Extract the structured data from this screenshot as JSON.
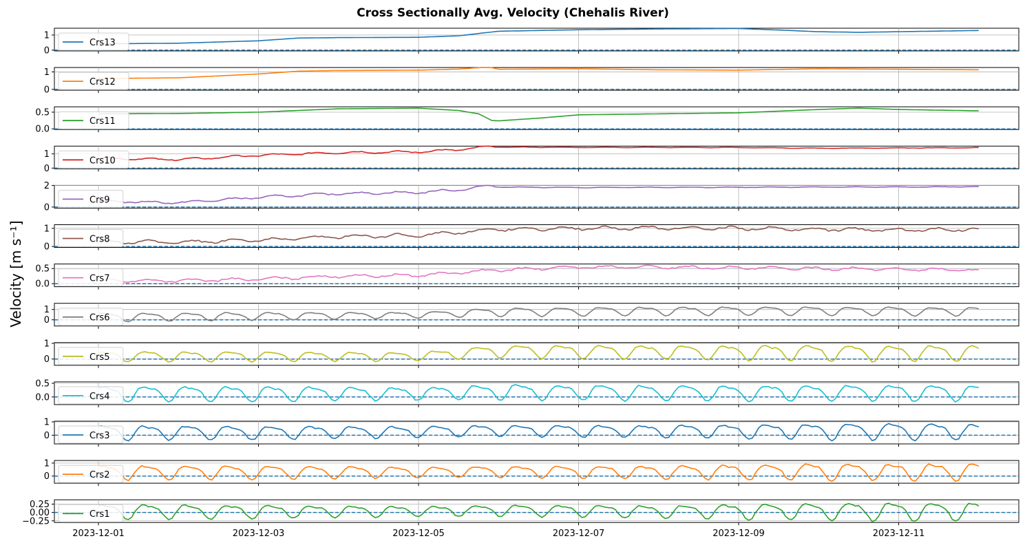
{
  "chart_data": {
    "type": "line",
    "title": "Cross Sectionally Avg. Velocity (Chehalis River)",
    "ylabel": "Velocity [m s⁻¹]",
    "x_range": [
      "2023-12-01",
      "2023-12-12"
    ],
    "x_ticks": [
      "2023-12-01",
      "2023-12-03",
      "2023-12-05",
      "2023-12-07",
      "2023-12-09",
      "2023-12-11"
    ],
    "grid": true,
    "legend_placement": "left",
    "zero_line": {
      "value": 0,
      "style": "dashed",
      "color": "#1f77b4"
    },
    "panels": [
      {
        "name": "Crs13",
        "color": "#1f77b4",
        "ylim": [
          -0.05,
          1.45
        ],
        "yticks": [
          0,
          1
        ],
        "ytick_labels": [
          "0",
          "1"
        ],
        "mode": "trend",
        "x": [
          "2023-12-01",
          "2023-12-02",
          "2023-12-03",
          "2023-12-03T12:00",
          "2023-12-04",
          "2023-12-05",
          "2023-12-05T12:00",
          "2023-12-06",
          "2023-12-07",
          "2023-12-08",
          "2023-12-09",
          "2023-12-09T12:00",
          "2023-12-10",
          "2023-12-10T12:00",
          "2023-12-11",
          "2023-12-12"
        ],
        "y": [
          0.42,
          0.46,
          0.62,
          0.8,
          0.83,
          0.85,
          0.95,
          1.25,
          1.35,
          1.4,
          1.43,
          1.33,
          1.22,
          1.18,
          1.22,
          1.3
        ]
      },
      {
        "name": "Crs12",
        "color": "#ff7f0e",
        "ylim": [
          -0.05,
          1.25
        ],
        "yticks": [
          0,
          1
        ],
        "ytick_labels": [
          "0",
          "1"
        ],
        "mode": "trend",
        "x": [
          "2023-12-01",
          "2023-12-02",
          "2023-12-03",
          "2023-12-03T12:00",
          "2023-12-04",
          "2023-12-05",
          "2023-12-05T12:00",
          "2023-12-05T21:00",
          "2023-12-06",
          "2023-12-07",
          "2023-12-08",
          "2023-12-09",
          "2023-12-10",
          "2023-12-11",
          "2023-12-12"
        ],
        "y": [
          0.62,
          0.66,
          0.88,
          1.04,
          1.08,
          1.1,
          1.16,
          1.28,
          1.15,
          1.18,
          1.12,
          1.1,
          1.18,
          1.15,
          1.12
        ]
      },
      {
        "name": "Crs11",
        "color": "#2ca02c",
        "ylim": [
          -0.02,
          0.66
        ],
        "yticks": [
          0,
          0.5
        ],
        "ytick_labels": [
          "0.0",
          "0.5"
        ],
        "mode": "trend",
        "x": [
          "2023-12-01",
          "2023-12-02",
          "2023-12-03",
          "2023-12-04",
          "2023-12-05",
          "2023-12-05T12:00",
          "2023-12-05T18:00",
          "2023-12-05T22:00",
          "2023-12-06",
          "2023-12-06T12:00",
          "2023-12-07",
          "2023-12-08",
          "2023-12-09",
          "2023-12-10",
          "2023-12-10T12:00",
          "2023-12-11",
          "2023-12-12"
        ],
        "y": [
          0.45,
          0.46,
          0.5,
          0.6,
          0.62,
          0.55,
          0.45,
          0.25,
          0.24,
          0.32,
          0.42,
          0.45,
          0.48,
          0.58,
          0.62,
          0.58,
          0.54
        ]
      },
      {
        "name": "Crs10",
        "color": "#d62728",
        "ylim": [
          -0.05,
          1.55
        ],
        "yticks": [
          0,
          1
        ],
        "ytick_labels": [
          "0",
          "1"
        ],
        "mode": "wiggle",
        "amp": 0.1,
        "amp_end_frac": 0.45,
        "x": [
          "2023-12-01",
          "2023-12-02",
          "2023-12-03",
          "2023-12-04",
          "2023-12-05",
          "2023-12-05T12:00",
          "2023-12-05T21:00",
          "2023-12-06",
          "2023-12-07",
          "2023-12-08",
          "2023-12-09",
          "2023-12-10",
          "2023-12-11",
          "2023-12-12"
        ],
        "y": [
          0.7,
          0.6,
          0.9,
          1.1,
          1.15,
          1.3,
          1.5,
          1.48,
          1.46,
          1.46,
          1.45,
          1.4,
          1.42,
          1.44
        ]
      },
      {
        "name": "Crs9",
        "color": "#9467bd",
        "ylim": [
          -0.1,
          2.0
        ],
        "yticks": [
          0,
          2
        ],
        "ytick_labels": [
          "0",
          "2"
        ],
        "mode": "wiggle",
        "amp": 0.15,
        "amp_end_frac": 0.45,
        "x": [
          "2023-12-01",
          "2023-12-02",
          "2023-12-03",
          "2023-12-04",
          "2023-12-05",
          "2023-12-05T12:00",
          "2023-12-05T21:00",
          "2023-12-06",
          "2023-12-07",
          "2023-12-08",
          "2023-12-09",
          "2023-12-10",
          "2023-12-11",
          "2023-12-12"
        ],
        "y": [
          0.55,
          0.4,
          0.9,
          1.25,
          1.35,
          1.6,
          1.95,
          1.85,
          1.8,
          1.82,
          1.82,
          1.85,
          1.85,
          1.88
        ]
      },
      {
        "name": "Crs8",
        "color": "#8c564b",
        "ylim": [
          -0.05,
          1.2
        ],
        "yticks": [
          0,
          1
        ],
        "ytick_labels": [
          "0",
          "1"
        ],
        "mode": "wiggle",
        "amp": 0.14,
        "amp_end_frac": 1.0,
        "x": [
          "2023-12-01",
          "2023-12-02",
          "2023-12-03",
          "2023-12-04",
          "2023-12-05",
          "2023-12-06",
          "2023-12-07",
          "2023-12-08",
          "2023-12-09",
          "2023-12-10",
          "2023-12-11",
          "2023-12-12"
        ],
        "y": [
          0.25,
          0.25,
          0.35,
          0.55,
          0.62,
          0.95,
          1.0,
          1.02,
          1.0,
          0.95,
          0.92,
          0.95
        ]
      },
      {
        "name": "Crs7",
        "color": "#e377c2",
        "ylim": [
          -0.1,
          0.65
        ],
        "yticks": [
          0,
          0.5
        ],
        "ytick_labels": [
          "0.0",
          "0.5"
        ],
        "mode": "wiggle",
        "amp": 0.07,
        "amp_end_frac": 1.0,
        "x": [
          "2023-12-01",
          "2023-12-02",
          "2023-12-03",
          "2023-12-04",
          "2023-12-05",
          "2023-12-06",
          "2023-12-07",
          "2023-12-08",
          "2023-12-09",
          "2023-12-10",
          "2023-12-11",
          "2023-12-12"
        ],
        "y": [
          0.1,
          0.1,
          0.15,
          0.25,
          0.28,
          0.45,
          0.55,
          0.55,
          0.52,
          0.5,
          0.48,
          0.45
        ]
      },
      {
        "name": "Crs6",
        "color": "#7f7f7f",
        "ylim": [
          -0.6,
          1.6
        ],
        "yticks": [
          0,
          1
        ],
        "ytick_labels": [
          "0",
          "1"
        ],
        "mode": "tidal",
        "x": [
          "2023-12-01",
          "2023-12-03",
          "2023-12-05",
          "2023-12-06",
          "2023-12-08",
          "2023-12-10",
          "2023-12-12"
        ],
        "mean": [
          0.3,
          0.4,
          0.5,
          0.8,
          0.9,
          0.9,
          0.85
        ],
        "amp": [
          0.45,
          0.4,
          0.3,
          0.45,
          0.45,
          0.45,
          0.45
        ]
      },
      {
        "name": "Crs5",
        "color": "#bcbd22",
        "ylim": [
          -0.4,
          1.05
        ],
        "yticks": [
          0,
          1
        ],
        "ytick_labels": [
          "0",
          "1"
        ],
        "mode": "tidal",
        "x": [
          "2023-12-01",
          "2023-12-03",
          "2023-12-05",
          "2023-12-06",
          "2023-12-08",
          "2023-12-10",
          "2023-12-12"
        ],
        "mean": [
          0.2,
          0.2,
          0.2,
          0.55,
          0.5,
          0.45,
          0.45
        ],
        "amp": [
          0.35,
          0.35,
          0.3,
          0.45,
          0.45,
          0.55,
          0.55
        ]
      },
      {
        "name": "Crs4",
        "color": "#17becf",
        "ylim": [
          -0.28,
          0.55
        ],
        "yticks": [
          0,
          0.5
        ],
        "ytick_labels": [
          "0.0",
          "0.5"
        ],
        "mode": "tidal",
        "x": [
          "2023-12-01",
          "2023-12-03",
          "2023-12-05",
          "2023-12-06",
          "2023-12-08",
          "2023-12-10",
          "2023-12-12"
        ],
        "mean": [
          0.15,
          0.15,
          0.15,
          0.22,
          0.18,
          0.18,
          0.18
        ],
        "amp": [
          0.3,
          0.3,
          0.25,
          0.3,
          0.3,
          0.32,
          0.32
        ]
      },
      {
        "name": "Crs3",
        "color": "#1f77b4",
        "ylim": [
          -0.65,
          1.05
        ],
        "yticks": [
          0,
          1
        ],
        "ytick_labels": [
          "0",
          "1"
        ],
        "mode": "tidal",
        "x": [
          "2023-12-01",
          "2023-12-03",
          "2023-12-05",
          "2023-12-06",
          "2023-12-08",
          "2023-12-10",
          "2023-12-12"
        ],
        "mean": [
          0.25,
          0.25,
          0.3,
          0.4,
          0.35,
          0.35,
          0.35
        ],
        "amp": [
          0.6,
          0.55,
          0.45,
          0.45,
          0.5,
          0.65,
          0.65
        ]
      },
      {
        "name": "Crs2",
        "color": "#ff7f0e",
        "ylim": [
          -0.55,
          1.2
        ],
        "yticks": [
          0,
          1
        ],
        "ytick_labels": [
          "0",
          "1"
        ],
        "mode": "tidal",
        "x": [
          "2023-12-01",
          "2023-12-03",
          "2023-12-05",
          "2023-12-06",
          "2023-12-08",
          "2023-12-10",
          "2023-12-12"
        ],
        "mean": [
          0.35,
          0.35,
          0.35,
          0.4,
          0.35,
          0.4,
          0.4
        ],
        "amp": [
          0.6,
          0.55,
          0.45,
          0.45,
          0.55,
          0.7,
          0.7
        ]
      },
      {
        "name": "Crs1",
        "color": "#2ca02c",
        "ylim": [
          -0.3,
          0.38
        ],
        "yticks": [
          -0.25,
          0,
          0.25
        ],
        "ytick_labels": [
          "−0.25",
          "0.00",
          "0.25"
        ],
        "mode": "tidal",
        "x": [
          "2023-12-01",
          "2023-12-03",
          "2023-12-05",
          "2023-12-06",
          "2023-12-08",
          "2023-12-10",
          "2023-12-12"
        ],
        "mean": [
          0.05,
          0.05,
          0.05,
          0.08,
          0.05,
          0.06,
          0.06
        ],
        "amp": [
          0.25,
          0.22,
          0.16,
          0.18,
          0.2,
          0.28,
          0.3
        ]
      }
    ]
  }
}
